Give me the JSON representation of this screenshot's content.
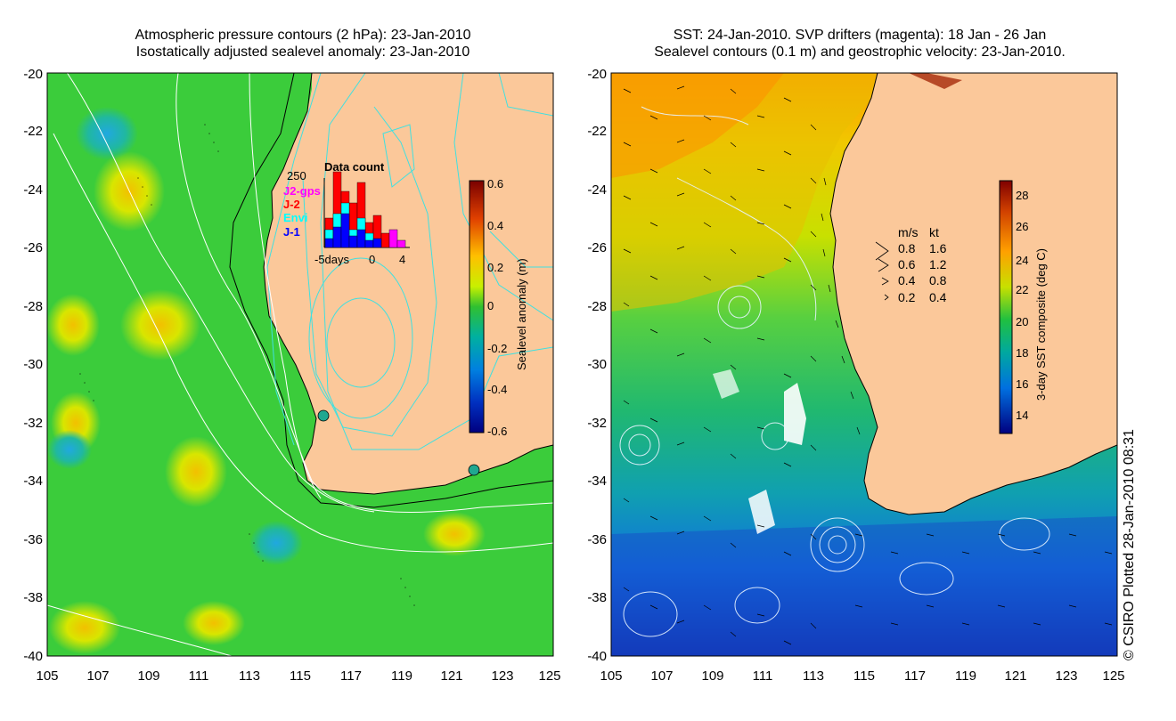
{
  "left_panel": {
    "title_line1": "Atmospheric pressure contours (2 hPa): 23-Jan-2010",
    "title_line2": "Isostatically adjusted sealevel anomaly: 23-Jan-2010",
    "colorbar": {
      "label": "Sealevel anomaly (m)",
      "ticks": [
        "0.6",
        "0.4",
        "0.2",
        "0",
        "-0.2",
        "-0.4",
        "-0.6"
      ]
    },
    "data_count": {
      "title": "Data count",
      "ymax_label": "250",
      "series": [
        {
          "name": "J2-gps",
          "color": "#ff00ff"
        },
        {
          "name": "J-2",
          "color": "#ff0000"
        },
        {
          "name": "Envi",
          "color": "#00ffff"
        },
        {
          "name": "J-1",
          "color": "#0000ff"
        }
      ],
      "xticks": [
        "-5days",
        "0",
        "4"
      ]
    }
  },
  "right_panel": {
    "title_line1": "SST: 24-Jan-2010. SVP drifters (magenta): 18 Jan - 26 Jan",
    "title_line2": "Sealevel contours (0.1 m) and geostrophic velocity: 23-Jan-2010.",
    "colorbar": {
      "label": "3-day SST composite (deg C)",
      "ticks": [
        "28",
        "26",
        "24",
        "22",
        "20",
        "18",
        "16",
        "14"
      ]
    },
    "velocity_legend": {
      "header_ms": "m/s",
      "header_kt": "kt",
      "rows": [
        {
          "ms": "0.8",
          "kt": "1.6"
        },
        {
          "ms": "0.6",
          "kt": "1.2"
        },
        {
          "ms": "0.4",
          "kt": "0.8"
        },
        {
          "ms": "0.2",
          "kt": "0.4"
        }
      ]
    }
  },
  "axes": {
    "lon_ticks": [
      "105",
      "107",
      "109",
      "111",
      "113",
      "115",
      "117",
      "119",
      "121",
      "123",
      "125"
    ],
    "lat_ticks": [
      "-20",
      "-22",
      "-24",
      "-26",
      "-28",
      "-30",
      "-32",
      "-34",
      "-36",
      "-38",
      "-40"
    ]
  },
  "credit": "© CSIRO Plotted 28-Jan-2010 08:31",
  "colors": {
    "land": "#fbc89a",
    "ocean_anomaly_base": "#3bcc3b",
    "contour_cyan": "#40e0e0",
    "coast_outline": "#000000"
  }
}
